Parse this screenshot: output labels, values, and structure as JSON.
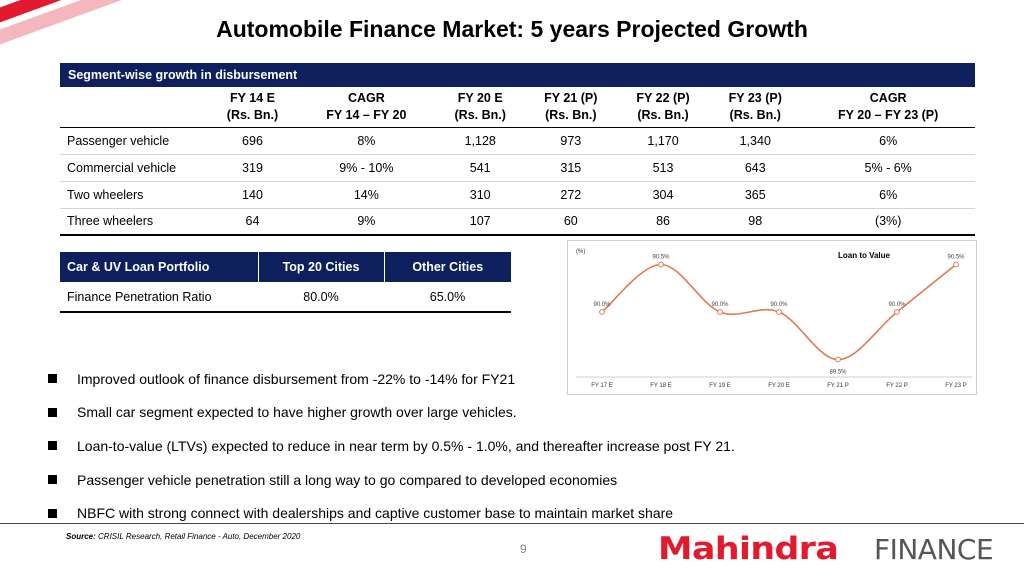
{
  "title": "Automobile Finance Market: 5 years Projected Growth",
  "segment_table": {
    "title": "Segment-wise growth in disbursement",
    "columns": [
      {
        "line1": "FY 14 E",
        "line2": "(Rs. Bn.)"
      },
      {
        "line1": "CAGR",
        "line2": "FY 14 – FY 20"
      },
      {
        "line1": "FY 20 E",
        "line2": "(Rs. Bn.)"
      },
      {
        "line1": "FY 21 (P)",
        "line2": "(Rs. Bn.)"
      },
      {
        "line1": "FY 22 (P)",
        "line2": "(Rs. Bn.)"
      },
      {
        "line1": "FY 23 (P)",
        "line2": "(Rs. Bn.)"
      },
      {
        "line1": "CAGR",
        "line2": "FY 20 – FY 23 (P)"
      }
    ],
    "rows": [
      {
        "label": "Passenger vehicle",
        "values": [
          "696",
          "8%",
          "1,128",
          "973",
          "1,170",
          "1,340",
          "6%"
        ]
      },
      {
        "label": "Commercial vehicle",
        "values": [
          "319",
          "9% - 10%",
          "541",
          "315",
          "513",
          "643",
          "5% - 6%"
        ]
      },
      {
        "label": "Two wheelers",
        "values": [
          "140",
          "14%",
          "310",
          "272",
          "304",
          "365",
          "6%"
        ]
      },
      {
        "label": "Three wheelers",
        "values": [
          "64",
          "9%",
          "107",
          "60",
          "86",
          "98",
          "(3%)"
        ]
      }
    ]
  },
  "loan_table": {
    "headers": [
      "Car & UV Loan Portfolio",
      "Top 20 Cities",
      "Other Cities"
    ],
    "row": {
      "label": "Finance Penetration Ratio",
      "values": [
        "80.0%",
        "65.0%"
      ]
    }
  },
  "chart_data": {
    "type": "line",
    "title": "Loan to Value",
    "ylabel": "(%)",
    "categories": [
      "FY 17 E",
      "FY 18 E",
      "FY 19 E",
      "FY 20 E",
      "FY 21 P",
      "FY 22 P",
      "FY 23 P"
    ],
    "values": [
      90.0,
      90.5,
      90.0,
      90.0,
      89.5,
      90.0,
      90.5
    ],
    "data_labels": [
      "90.0%",
      "90.5%",
      "90.0%",
      "90.0%",
      "89.5%",
      "90.0%",
      "90.5%"
    ],
    "ylim": [
      89.4,
      90.6
    ],
    "grid": false,
    "line_color": "#e07a52"
  },
  "bullets": [
    "Improved outlook of finance disbursement from -22% to -14% for FY21",
    "Small car segment expected to have higher growth over large vehicles.",
    "Loan-to-value (LTVs) expected to reduce in near term by 0.5% - 1.0%, and thereafter increase post FY 21.",
    "Passenger vehicle penetration still a long way to go compared to developed economies",
    "NBFC with strong connect with dealerships and captive customer base to maintain market share"
  ],
  "source": {
    "label": "Source:",
    "text": "CRISIL Research, Retail Finance - Auto, December 2020"
  },
  "page_number": "9",
  "logo": {
    "brand": "Mahindra",
    "suffix": "FINANCE"
  },
  "colors": {
    "header_navy": "#0d1f5c",
    "brand_red": "#e3192d"
  }
}
